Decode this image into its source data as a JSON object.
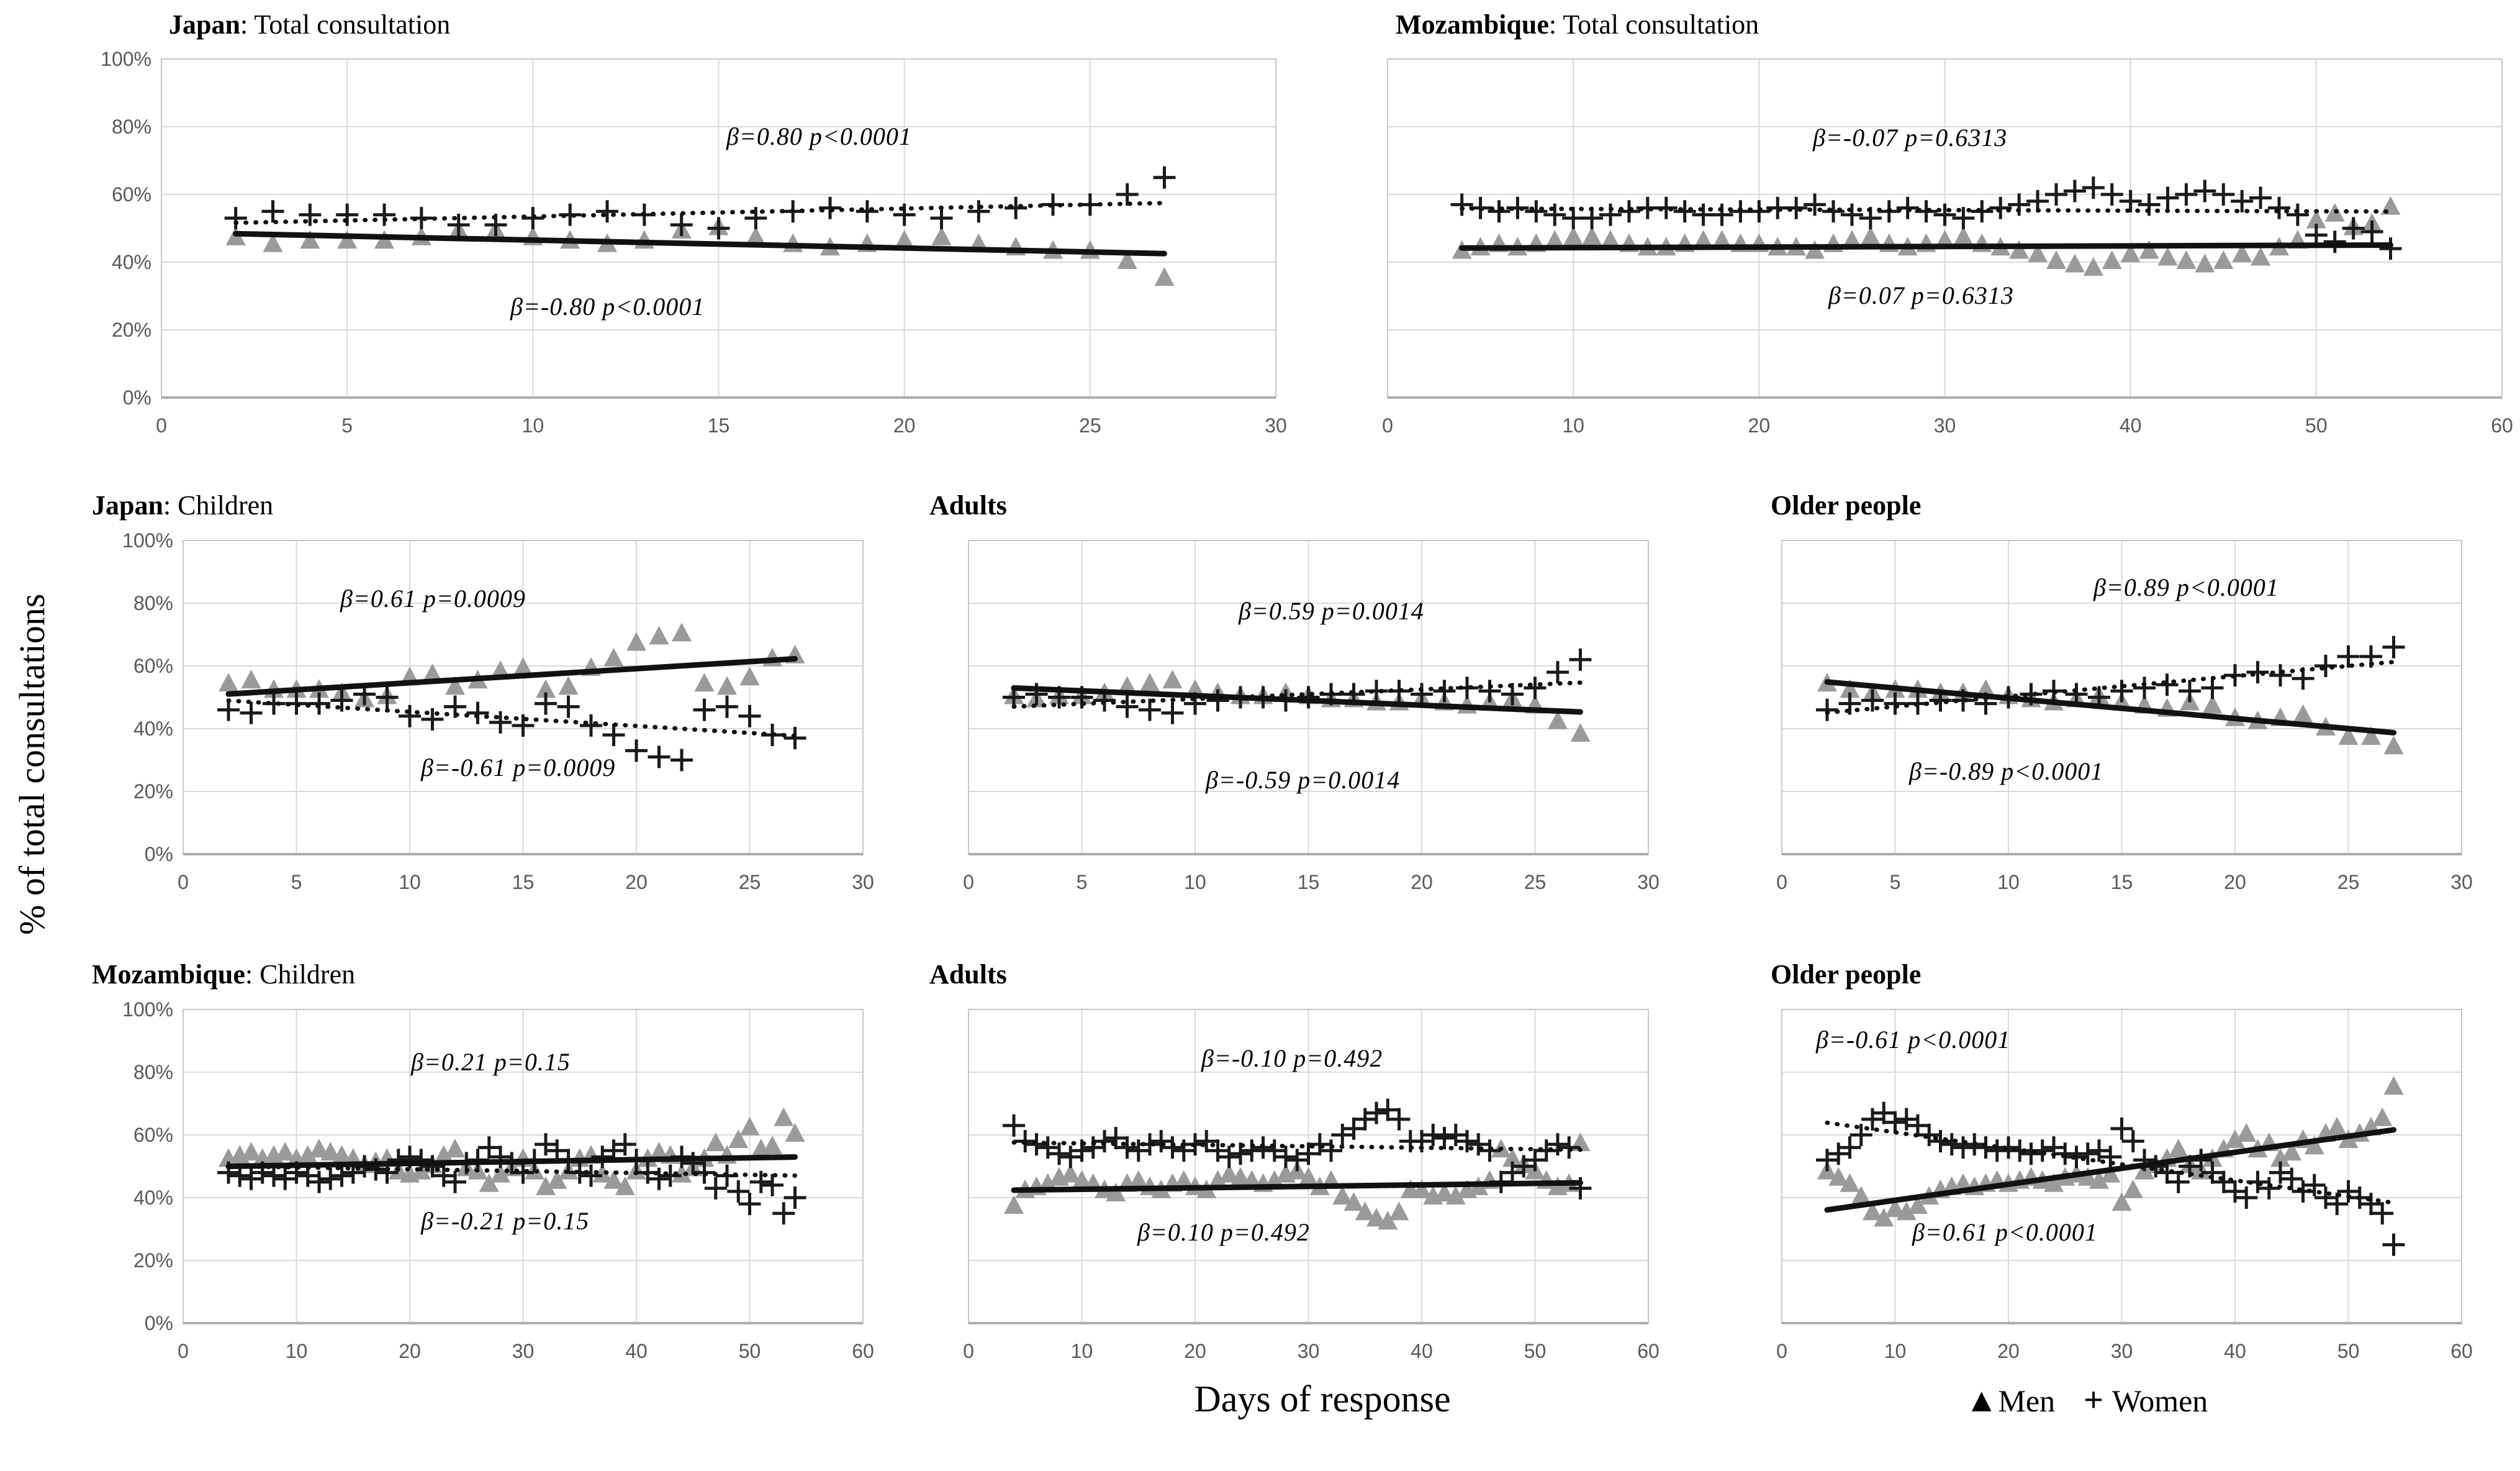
{
  "labels": {
    "y_axis": "% of total consultations",
    "x_axis": "Days of response"
  },
  "legend": {
    "men_marker": "▲",
    "men_label": "Men",
    "women_marker": "+",
    "women_label": "Women"
  },
  "colors": {
    "men_marker": "#9a9a9a",
    "women_marker": "#1a1a1a",
    "trend_line": "#111111",
    "gridline": "#d9d9d9",
    "plot_border": "#c8c8c8",
    "axis_line": "#adadad",
    "tick_text": "#595959"
  },
  "chart_data": {
    "type": "scatter",
    "y_axis": {
      "min": 0,
      "max": 100,
      "tick_step": 20,
      "tick_format": "percent",
      "gridlines": true
    },
    "x_axis_label": "Days of response",
    "legend_entries": [
      {
        "label": "Men",
        "marker": "filled-triangle",
        "trend_line": "solid"
      },
      {
        "label": "Women",
        "marker": "plus",
        "trend_line": "dotted"
      }
    ],
    "charts": [
      {
        "id": "japan-total",
        "title_prefix": "Japan",
        "title_rest": ": Total consultation",
        "x_max": 30,
        "x_tick_step": 5,
        "show_y_labels": true,
        "days": [
          2,
          3,
          4,
          5,
          6,
          7,
          8,
          9,
          10,
          11,
          12,
          13,
          14,
          15,
          16,
          17,
          18,
          19,
          20,
          21,
          22,
          23,
          24,
          25,
          26,
          27
        ],
        "women_pct": [
          53,
          55,
          54,
          54,
          54,
          53,
          51,
          51,
          53,
          54,
          55,
          54,
          51,
          50,
          53,
          55,
          56,
          55,
          54,
          53,
          55,
          56,
          57,
          57,
          60,
          65
        ],
        "men_pct": [
          47,
          45,
          46,
          46,
          46,
          47,
          49,
          49,
          47,
          46,
          45,
          46,
          49,
          50,
          47,
          45,
          44,
          45,
          46,
          47,
          45,
          44,
          43,
          43,
          40,
          35
        ],
        "annotation_top": {
          "text": "β=0.80  p<0.0001",
          "series": "women"
        },
        "annotation_bottom": {
          "text": "β=-0.80  p<0.0001",
          "series": "men"
        }
      },
      {
        "id": "mozambique-total",
        "title_prefix": "Mozambique",
        "title_rest": ": Total consultation",
        "x_max": 60,
        "x_tick_step": 10,
        "show_y_labels": false,
        "days": [
          4,
          5,
          6,
          7,
          8,
          9,
          10,
          11,
          12,
          13,
          14,
          15,
          16,
          17,
          18,
          19,
          20,
          21,
          22,
          23,
          24,
          25,
          26,
          27,
          28,
          29,
          30,
          31,
          32,
          33,
          34,
          35,
          36,
          37,
          38,
          39,
          40,
          41,
          42,
          43,
          44,
          45,
          46,
          47,
          48,
          49,
          50,
          51,
          52,
          53,
          54
        ],
        "women_pct": [
          57,
          56,
          55,
          56,
          55,
          54,
          53,
          53,
          54,
          55,
          56,
          56,
          55,
          54,
          54,
          55,
          55,
          56,
          56,
          57,
          55,
          54,
          53,
          55,
          56,
          55,
          54,
          53,
          55,
          56,
          57,
          58,
          60,
          61,
          62,
          60,
          58,
          57,
          59,
          60,
          61,
          60,
          58,
          59,
          56,
          54,
          48,
          46,
          50,
          49,
          44
        ],
        "men_pct": [
          43,
          44,
          45,
          44,
          45,
          46,
          47,
          47,
          46,
          45,
          44,
          44,
          45,
          46,
          46,
          45,
          45,
          44,
          44,
          43,
          45,
          46,
          47,
          45,
          44,
          45,
          46,
          47,
          45,
          44,
          43,
          42,
          40,
          39,
          38,
          40,
          42,
          43,
          41,
          40,
          39,
          40,
          42,
          41,
          44,
          46,
          52,
          54,
          50,
          51,
          56
        ],
        "annotation_top": {
          "text": "β=-0.07  p=0.6313",
          "series": "women"
        },
        "annotation_bottom": {
          "text": "β=0.07  p=0.6313",
          "series": "men"
        }
      },
      {
        "id": "japan-children",
        "title_prefix": "Japan",
        "title_rest": ": Children",
        "x_max": 30,
        "x_tick_step": 5,
        "show_y_labels": true,
        "days": [
          2,
          3,
          4,
          5,
          6,
          7,
          8,
          9,
          10,
          11,
          12,
          13,
          14,
          15,
          16,
          17,
          18,
          19,
          20,
          21,
          22,
          23,
          24,
          25,
          26,
          27
        ],
        "women_pct": [
          46,
          45,
          48,
          48,
          48,
          49,
          51,
          50,
          44,
          43,
          47,
          45,
          42,
          41,
          48,
          47,
          41,
          38,
          33,
          31,
          30,
          46,
          47,
          44,
          38,
          37
        ],
        "men_pct": [
          54,
          55,
          52,
          52,
          52,
          51,
          49,
          50,
          56,
          57,
          53,
          55,
          58,
          59,
          52,
          53,
          59,
          62,
          67,
          69,
          70,
          54,
          53,
          56,
          62,
          63
        ],
        "annotation_top": {
          "text": "β=0.61  p=0.0009",
          "series": "men"
        },
        "annotation_bottom": {
          "text": "β=-0.61  p=0.0009",
          "series": "women"
        }
      },
      {
        "id": "japan-adults",
        "title_prefix": "Adults",
        "title_rest": "",
        "x_max": 30,
        "x_tick_step": 5,
        "show_y_labels": false,
        "days": [
          2,
          3,
          4,
          5,
          6,
          7,
          8,
          9,
          10,
          11,
          12,
          13,
          14,
          15,
          16,
          17,
          18,
          19,
          20,
          21,
          22,
          23,
          24,
          25,
          26,
          27
        ],
        "women_pct": [
          50,
          51,
          50,
          50,
          49,
          47,
          46,
          45,
          48,
          49,
          50,
          50,
          49,
          50,
          51,
          51,
          52,
          52,
          51,
          52,
          53,
          52,
          51,
          53,
          58,
          62
        ],
        "men_pct": [
          50,
          49,
          50,
          50,
          51,
          53,
          54,
          55,
          52,
          51,
          50,
          50,
          51,
          50,
          49,
          49,
          48,
          48,
          49,
          48,
          47,
          48,
          49,
          47,
          42,
          38
        ],
        "annotation_top": {
          "text": "β=0.59  p=0.0014",
          "series": "women"
        },
        "annotation_bottom": {
          "text": "β=-0.59  p=0.0014",
          "series": "men"
        }
      },
      {
        "id": "japan-older",
        "title_prefix": "Older people",
        "title_rest": "",
        "x_max": 30,
        "x_tick_step": 5,
        "show_y_labels": false,
        "days": [
          2,
          3,
          4,
          5,
          6,
          7,
          8,
          9,
          10,
          11,
          12,
          13,
          14,
          15,
          16,
          17,
          18,
          19,
          20,
          21,
          22,
          23,
          24,
          25,
          26,
          27
        ],
        "women_pct": [
          46,
          48,
          49,
          48,
          48,
          49,
          49,
          48,
          50,
          51,
          52,
          51,
          50,
          52,
          53,
          54,
          52,
          53,
          57,
          58,
          57,
          56,
          60,
          63,
          63,
          66
        ],
        "men_pct": [
          54,
          52,
          51,
          52,
          52,
          51,
          51,
          52,
          50,
          49,
          48,
          49,
          50,
          48,
          47,
          46,
          48,
          47,
          43,
          42,
          43,
          44,
          40,
          37,
          37,
          34
        ],
        "annotation_top": {
          "text": "β=0.89  p<0.0001",
          "series": "women"
        },
        "annotation_bottom": {
          "text": "β=-0.89  p<0.0001",
          "series": "men"
        }
      },
      {
        "id": "mozambique-children",
        "title_prefix": "Mozambique",
        "title_rest": ": Children",
        "x_max": 60,
        "x_tick_step": 10,
        "show_y_labels": true,
        "days": [
          4,
          5,
          6,
          7,
          8,
          9,
          10,
          11,
          12,
          13,
          14,
          15,
          16,
          17,
          18,
          19,
          20,
          21,
          22,
          23,
          24,
          25,
          26,
          27,
          28,
          29,
          30,
          31,
          32,
          33,
          34,
          35,
          36,
          37,
          38,
          39,
          40,
          41,
          42,
          43,
          44,
          45,
          46,
          47,
          48,
          49,
          50,
          51,
          52,
          53,
          54
        ],
        "women_pct": [
          48,
          47,
          46,
          48,
          47,
          46,
          48,
          47,
          45,
          46,
          47,
          48,
          50,
          49,
          48,
          52,
          53,
          52,
          50,
          47,
          45,
          51,
          52,
          56,
          53,
          51,
          48,
          52,
          57,
          55,
          52,
          48,
          47,
          53,
          55,
          57,
          52,
          48,
          46,
          47,
          53,
          51,
          48,
          43,
          47,
          42,
          38,
          45,
          44,
          35,
          40
        ],
        "men_pct": [
          52,
          53,
          54,
          52,
          53,
          54,
          52,
          53,
          55,
          54,
          53,
          52,
          50,
          51,
          52,
          48,
          47,
          48,
          50,
          53,
          55,
          49,
          48,
          44,
          47,
          49,
          52,
          48,
          43,
          45,
          48,
          52,
          53,
          47,
          45,
          43,
          48,
          52,
          54,
          53,
          47,
          49,
          52,
          57,
          53,
          58,
          62,
          55,
          56,
          65,
          60
        ],
        "annotation_top": {
          "text": "β=0.21  p=0.15",
          "series": "men"
        },
        "annotation_bottom": {
          "text": "β=-0.21  p=0.15",
          "series": "women"
        }
      },
      {
        "id": "mozambique-adults",
        "title_prefix": "Adults",
        "title_rest": "",
        "x_max": 60,
        "x_tick_step": 10,
        "show_y_labels": false,
        "days": [
          4,
          5,
          6,
          7,
          8,
          9,
          10,
          11,
          12,
          13,
          14,
          15,
          16,
          17,
          18,
          19,
          20,
          21,
          22,
          23,
          24,
          25,
          26,
          27,
          28,
          29,
          30,
          31,
          32,
          33,
          34,
          35,
          36,
          37,
          38,
          39,
          40,
          41,
          42,
          43,
          44,
          45,
          46,
          47,
          48,
          49,
          50,
          51,
          52,
          53,
          54
        ],
        "women_pct": [
          63,
          58,
          57,
          56,
          54,
          53,
          55,
          56,
          58,
          59,
          56,
          55,
          57,
          58,
          56,
          55,
          57,
          58,
          55,
          53,
          54,
          55,
          56,
          55,
          53,
          52,
          54,
          57,
          55,
          60,
          62,
          65,
          67,
          68,
          65,
          58,
          58,
          60,
          59,
          60,
          58,
          57,
          55,
          45,
          48,
          50,
          52,
          55,
          57,
          56,
          43
        ],
        "men_pct": [
          37,
          42,
          43,
          44,
          46,
          47,
          45,
          44,
          42,
          41,
          44,
          45,
          43,
          42,
          44,
          45,
          43,
          42,
          45,
          47,
          46,
          45,
          44,
          45,
          47,
          48,
          46,
          43,
          45,
          40,
          38,
          35,
          33,
          32,
          35,
          42,
          42,
          40,
          41,
          40,
          42,
          43,
          45,
          55,
          52,
          50,
          48,
          45,
          43,
          44,
          57
        ],
        "annotation_top": {
          "text": "β=-0.10  p=0.492",
          "series": "women"
        },
        "annotation_bottom": {
          "text": "β=0.10  p=0.492",
          "series": "men"
        }
      },
      {
        "id": "mozambique-older",
        "title_prefix": "Older people",
        "title_rest": "",
        "x_max": 60,
        "x_tick_step": 10,
        "show_y_labels": false,
        "days": [
          4,
          5,
          6,
          7,
          8,
          9,
          10,
          11,
          12,
          13,
          14,
          15,
          16,
          17,
          18,
          19,
          20,
          21,
          22,
          23,
          24,
          25,
          26,
          27,
          28,
          29,
          30,
          31,
          32,
          33,
          34,
          35,
          36,
          37,
          38,
          39,
          40,
          41,
          42,
          43,
          44,
          45,
          46,
          47,
          48,
          49,
          50,
          51,
          52,
          53,
          54
        ],
        "women_pct": [
          52,
          54,
          56,
          60,
          65,
          67,
          64,
          65,
          63,
          60,
          58,
          57,
          56,
          57,
          56,
          55,
          56,
          55,
          54,
          55,
          56,
          54,
          53,
          54,
          55,
          53,
          62,
          58,
          52,
          50,
          48,
          45,
          50,
          52,
          48,
          45,
          42,
          40,
          45,
          43,
          48,
          46,
          42,
          44,
          40,
          38,
          42,
          40,
          38,
          35,
          25
        ],
        "men_pct": [
          48,
          46,
          44,
          40,
          35,
          33,
          36,
          35,
          37,
          40,
          42,
          43,
          44,
          43,
          44,
          45,
          44,
          45,
          46,
          45,
          44,
          46,
          47,
          46,
          45,
          47,
          38,
          42,
          48,
          50,
          52,
          55,
          50,
          48,
          52,
          55,
          58,
          60,
          55,
          57,
          52,
          54,
          58,
          56,
          60,
          62,
          58,
          60,
          62,
          65,
          75
        ],
        "annotation_top": {
          "text": "β=-0.61  p<0.0001",
          "series": "women"
        },
        "annotation_bottom": {
          "text": "β=0.61  p<0.0001",
          "series": "men"
        }
      }
    ]
  }
}
